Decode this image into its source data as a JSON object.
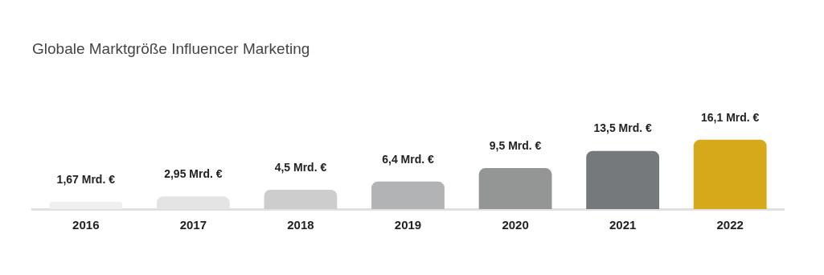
{
  "chart_data": {
    "type": "bar",
    "title": "Globale Marktgröße Influencer Marketing",
    "categories": [
      "2016",
      "2017",
      "2018",
      "2019",
      "2020",
      "2021",
      "2022"
    ],
    "values": [
      1.67,
      2.95,
      4.5,
      6.4,
      9.5,
      13.5,
      16.1
    ],
    "value_labels": [
      "1,67 Mrd. €",
      "2,95 Mrd. €",
      "4,5 Mrd. €",
      "6,4 Mrd. €",
      "9,5 Mrd. €",
      "13,5 Mrd. €",
      "16,1 Mrd. €"
    ],
    "colors": [
      "#efefef",
      "#e4e4e4",
      "#cdcdcd",
      "#b2b3b4",
      "#949696",
      "#76797b",
      "#d6a91a"
    ],
    "grid": false,
    "legend": false
  }
}
